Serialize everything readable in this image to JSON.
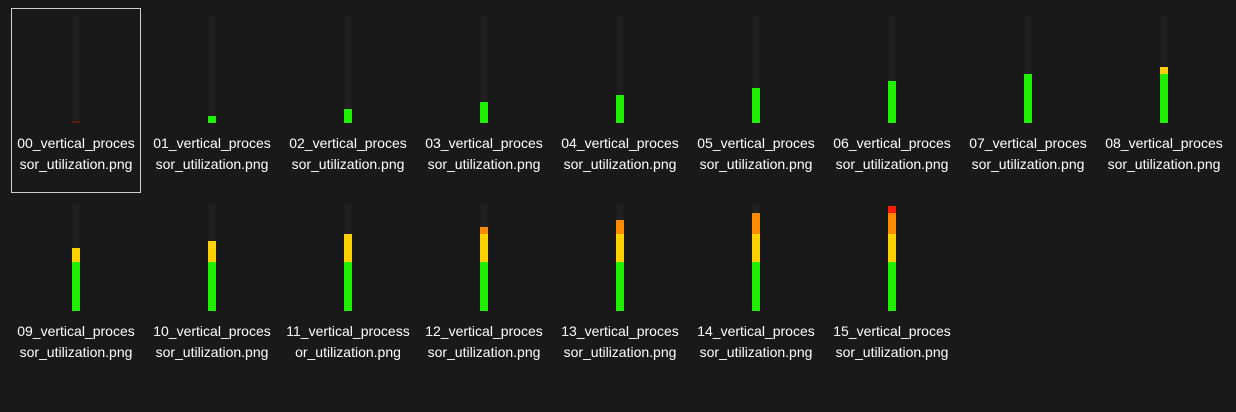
{
  "colors": {
    "background": "#191919",
    "selection_border": "#cfcfcf",
    "green": "#22ee00",
    "yellow": "#ffd000",
    "orange": "#ff8a00",
    "red": "#ff1a00"
  },
  "icon": "vertical-meter-thumbnail",
  "files": [
    {
      "name": "00_vertical_processor_utilization.png",
      "level": 0,
      "selected": true
    },
    {
      "name": "01_vertical_processor_utilization.png",
      "level": 1,
      "selected": false
    },
    {
      "name": "02_vertical_processor_utilization.png",
      "level": 2,
      "selected": false
    },
    {
      "name": "03_vertical_processor_utilization.png",
      "level": 3,
      "selected": false
    },
    {
      "name": "04_vertical_processor_utilization.png",
      "level": 4,
      "selected": false
    },
    {
      "name": "05_vertical_processor_utilization.png",
      "level": 5,
      "selected": false
    },
    {
      "name": "06_vertical_processor_utilization.png",
      "level": 6,
      "selected": false
    },
    {
      "name": "07_vertical_processor_utilization.png",
      "level": 7,
      "selected": false
    },
    {
      "name": "08_vertical_processor_utilization.png",
      "level": 8,
      "selected": false
    },
    {
      "name": "09_vertical_processor_utilization.png",
      "level": 9,
      "selected": false
    },
    {
      "name": "10_vertical_processor_utilization.png",
      "level": 10,
      "selected": false
    },
    {
      "name": "11_vertical_processor_utilization.png",
      "level": 11,
      "selected": false
    },
    {
      "name": "12_vertical_processor_utilization.png",
      "level": 12,
      "selected": false
    },
    {
      "name": "13_vertical_processor_utilization.png",
      "level": 13,
      "selected": false
    },
    {
      "name": "14_vertical_processor_utilization.png",
      "level": 14,
      "selected": false
    },
    {
      "name": "15_vertical_processor_utilization.png",
      "level": 15,
      "selected": false
    }
  ],
  "meter_max_level": 15
}
